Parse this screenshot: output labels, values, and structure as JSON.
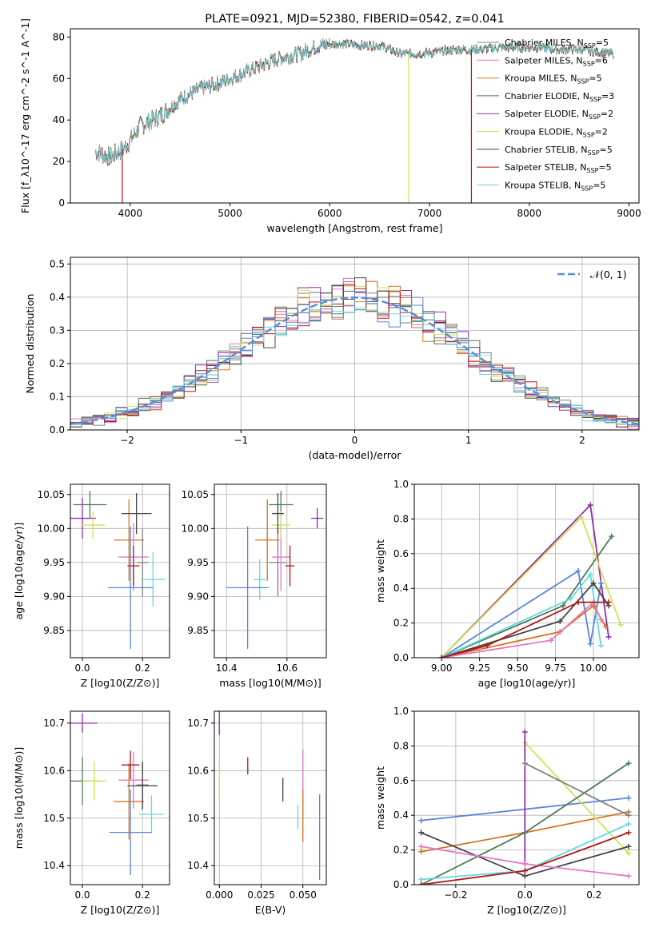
{
  "colors": {
    "Chabrier MILES": "#808080",
    "Salpeter MILES": "#e377c2",
    "Kroupa MILES": "#d9731f",
    "Chabrier ELODIE": "#4d7a5a",
    "Salpeter ELODIE": "#8e2fa8",
    "Kroupa ELODIE": "#d4e157",
    "Chabrier STELIB": "#444444",
    "Salpeter STELIB": "#b21818",
    "Kroupa STELIB": "#66d9dd",
    "blue": "#5b86d6",
    "normal": "#5b8fd6"
  },
  "chart_data": [
    {
      "id": "spectrum",
      "type": "line",
      "title": "PLATE=0921, MJD=52380, FIBERID=0542, z=0.041",
      "xlabel": "wavelength [Angstrom, rest frame]",
      "ylabel": "Flux [f_λ10^-17 erg cm^-2 s^-1 A^-1]",
      "xlim": [
        3400,
        9100
      ],
      "ylim": [
        0,
        84
      ],
      "xticks": [
        "4000",
        "5000",
        "6000",
        "7000",
        "8000",
        "9000"
      ],
      "yticks": [
        "0",
        "20",
        "40",
        "60",
        "80"
      ],
      "legend_position": "right",
      "legend": [
        {
          "label": "Chabrier MILES, N_SSP=5",
          "color": "Chabrier MILES"
        },
        {
          "label": "Salpeter MILES, N_SSP=6",
          "color": "Salpeter MILES"
        },
        {
          "label": "Kroupa MILES, N_SSP=5",
          "color": "Kroupa MILES"
        },
        {
          "label": "Chabrier ELODIE, N_SSP=3",
          "color": "Chabrier ELODIE"
        },
        {
          "label": "Salpeter ELODIE, N_SSP=2",
          "color": "Salpeter ELODIE"
        },
        {
          "label": "Kroupa ELODIE, N_SSP=2",
          "color": "Kroupa ELODIE"
        },
        {
          "label": "Chabrier STELIB, N_SSP=5",
          "color": "Chabrier STELIB"
        },
        {
          "label": "Salpeter STELIB, N_SSP=5",
          "color": "Salpeter STELIB"
        },
        {
          "label": "Kroupa STELIB, N_SSP=5",
          "color": "Kroupa STELIB"
        }
      ],
      "continuum": [
        [
          3650,
          25
        ],
        [
          3800,
          22
        ],
        [
          3950,
          27
        ],
        [
          4100,
          37
        ],
        [
          4300,
          42
        ],
        [
          4500,
          50
        ],
        [
          4700,
          55
        ],
        [
          4900,
          58
        ],
        [
          5100,
          62
        ],
        [
          5300,
          66
        ],
        [
          5500,
          70
        ],
        [
          5700,
          72
        ],
        [
          5900,
          76
        ],
        [
          6100,
          77
        ],
        [
          6300,
          76
        ],
        [
          6500,
          76
        ],
        [
          6700,
          72
        ],
        [
          6900,
          72
        ],
        [
          7100,
          73
        ],
        [
          7300,
          74
        ],
        [
          7500,
          74
        ],
        [
          7700,
          75
        ],
        [
          7900,
          75
        ],
        [
          8100,
          75
        ],
        [
          8300,
          74
        ],
        [
          8500,
          74
        ],
        [
          8800,
          72
        ]
      ],
      "drops": [
        [
          3920,
          "Salpeter STELIB"
        ],
        [
          6790,
          "Kroupa ELODIE"
        ],
        [
          7420,
          "Salpeter STELIB"
        ]
      ]
    },
    {
      "id": "residuals",
      "type": "histogram",
      "xlabel": "(data-model)/error",
      "ylabel": "Normed distribution",
      "xlim": [
        -2.5,
        2.5
      ],
      "ylim": [
        0,
        0.52
      ],
      "xticks": [
        "−2",
        "−1",
        "0",
        "1",
        "2"
      ],
      "yticks": [
        "0.0",
        "0.1",
        "0.2",
        "0.3",
        "0.4",
        "0.5"
      ],
      "curve_label": "𝒩(0, 1)",
      "bin_width": 0.1
    },
    {
      "id": "age_vs_Z",
      "type": "scatter",
      "xlabel": "Z [log10(Z/Z⊙)]",
      "ylabel": "age [log10(age/yr)]",
      "xlim": [
        -0.04,
        0.29
      ],
      "ylim": [
        9.81,
        10.065
      ],
      "xticks": [
        "0.0",
        "0.2"
      ],
      "yticks": [
        "9.85",
        "9.90",
        "9.95",
        "10.00",
        "10.05"
      ],
      "points": [
        {
          "s": "Chabrier MILES",
          "x": 0.2,
          "y": 9.95,
          "ex": 0.02,
          "ey": 0.05
        },
        {
          "s": "Salpeter MILES",
          "x": 0.17,
          "y": 9.958,
          "ex": 0.05,
          "ey": 0.05
        },
        {
          "s": "Kroupa MILES",
          "x": 0.155,
          "y": 9.983,
          "ex": 0.05,
          "ey": 0.06
        },
        {
          "s": "Chabrier ELODIE",
          "x": 0.025,
          "y": 10.035,
          "ex": 0.055,
          "ey": 0.02
        },
        {
          "s": "Salpeter ELODIE",
          "x": 0.0,
          "y": 10.015,
          "ex": 0.045,
          "ey": 0.03
        },
        {
          "s": "Kroupa ELODIE",
          "x": 0.035,
          "y": 10.005,
          "ex": 0.04,
          "ey": 0.02
        },
        {
          "s": "Chabrier STELIB",
          "x": 0.18,
          "y": 10.022,
          "ex": 0.05,
          "ey": 0.03
        },
        {
          "s": "Salpeter STELIB",
          "x": 0.17,
          "y": 9.945,
          "ex": 0.02,
          "ey": 0.03
        },
        {
          "s": "Kroupa STELIB",
          "x": 0.235,
          "y": 9.925,
          "ex": 0.04,
          "ey": 0.04
        },
        {
          "s": "blue",
          "x": 0.16,
          "y": 9.913,
          "ex": 0.075,
          "ey": 0.09
        }
      ]
    },
    {
      "id": "age_vs_mass",
      "type": "scatter",
      "xlabel": "mass [log10(M/M⊙)]",
      "ylabel": "",
      "xlim": [
        10.36,
        10.73
      ],
      "ylim": [
        9.81,
        10.065
      ],
      "xticks": [
        "10.4",
        "10.6"
      ],
      "yticks": [
        "9.85",
        "9.90",
        "9.95",
        "10.00",
        "10.05"
      ],
      "points": [
        {
          "s": "Chabrier MILES",
          "x": 10.57,
          "y": 9.95,
          "ex": 0.03,
          "ey": 0.05
        },
        {
          "s": "Salpeter MILES",
          "x": 10.58,
          "y": 9.958,
          "ex": 0.03,
          "ey": 0.05
        },
        {
          "s": "Kroupa MILES",
          "x": 10.535,
          "y": 9.983,
          "ex": 0.04,
          "ey": 0.06
        },
        {
          "s": "Chabrier ELODIE",
          "x": 10.58,
          "y": 10.035,
          "ex": 0.04,
          "ey": 0.02
        },
        {
          "s": "Salpeter ELODIE",
          "x": 10.7,
          "y": 10.015,
          "ex": 0.02,
          "ey": 0.015
        },
        {
          "s": "Kroupa ELODIE",
          "x": 10.58,
          "y": 10.005,
          "ex": 0.03,
          "ey": 0.02
        },
        {
          "s": "Chabrier STELIB",
          "x": 10.57,
          "y": 10.022,
          "ex": 0.02,
          "ey": 0.03
        },
        {
          "s": "Salpeter STELIB",
          "x": 10.61,
          "y": 9.945,
          "ex": 0.015,
          "ey": 0.03
        },
        {
          "s": "Kroupa STELIB",
          "x": 10.51,
          "y": 9.925,
          "ex": 0.02,
          "ey": 0.03
        },
        {
          "s": "blue",
          "x": 10.47,
          "y": 9.913,
          "ex": 0.07,
          "ey": 0.09
        }
      ]
    },
    {
      "id": "weight_vs_age",
      "type": "line",
      "xlabel": "age [log10(age/yr)]",
      "ylabel": "mass weight",
      "xlim": [
        8.82,
        10.3
      ],
      "ylim": [
        0,
        1
      ],
      "xticks": [
        "9.00",
        "9.25",
        "9.50",
        "9.75",
        "10.00"
      ],
      "yticks": [
        "0.0",
        "0.2",
        "0.4",
        "0.6",
        "0.8",
        "1.0"
      ],
      "series": [
        {
          "s": "Chabrier ELODIE",
          "pts": [
            [
              9.0,
              0.0
            ],
            [
              9.8,
              0.3
            ],
            [
              10.12,
              0.7
            ]
          ]
        },
        {
          "s": "Salpeter ELODIE",
          "pts": [
            [
              9.0,
              0.0
            ],
            [
              9.98,
              0.88
            ],
            [
              10.1,
              0.12
            ]
          ]
        },
        {
          "s": "Kroupa ELODIE",
          "pts": [
            [
              9.0,
              0.0
            ],
            [
              9.92,
              0.81
            ],
            [
              10.18,
              0.19
            ]
          ]
        },
        {
          "s": "blue",
          "pts": [
            [
              9.0,
              0.0
            ],
            [
              9.9,
              0.5
            ],
            [
              9.98,
              0.08
            ],
            [
              10.05,
              0.43
            ]
          ]
        },
        {
          "s": "Kroupa STELIB",
          "pts": [
            [
              9.0,
              0.0
            ],
            [
              9.85,
              0.34
            ],
            [
              9.98,
              0.48
            ],
            [
              10.05,
              0.07
            ]
          ]
        },
        {
          "s": "Kroupa MILES",
          "pts": [
            [
              9.0,
              0.0
            ],
            [
              9.78,
              0.15
            ],
            [
              10.0,
              0.3
            ],
            [
              10.08,
              0.18
            ]
          ]
        },
        {
          "s": "Salpeter MILES",
          "pts": [
            [
              9.0,
              0.0
            ],
            [
              9.72,
              0.1
            ],
            [
              10.0,
              0.32
            ],
            [
              10.05,
              0.22
            ]
          ]
        },
        {
          "s": "Chabrier STELIB",
          "pts": [
            [
              9.0,
              0.0
            ],
            [
              9.78,
              0.21
            ],
            [
              10.0,
              0.43
            ],
            [
              10.1,
              0.3
            ]
          ]
        },
        {
          "s": "Salpeter STELIB",
          "pts": [
            [
              9.0,
              0.0
            ],
            [
              9.3,
              0.07
            ],
            [
              9.9,
              0.32
            ],
            [
              10.1,
              0.32
            ]
          ]
        }
      ]
    },
    {
      "id": "mass_vs_Z",
      "type": "scatter",
      "xlabel": "Z [log10(Z/Z⊙)]",
      "ylabel": "mass [log10(M/M⊙)]",
      "xlim": [
        -0.04,
        0.29
      ],
      "ylim": [
        10.36,
        10.725
      ],
      "xticks": [
        "0.0",
        "0.2"
      ],
      "yticks": [
        "10.4",
        "10.5",
        "10.6",
        "10.7"
      ],
      "points": [
        {
          "s": "Chabrier MILES",
          "x": 0.2,
          "y": 10.57,
          "ex": 0.02,
          "ey": 0.05
        },
        {
          "s": "Salpeter MILES",
          "x": 0.17,
          "y": 10.58,
          "ex": 0.05,
          "ey": 0.06
        },
        {
          "s": "Kroupa MILES",
          "x": 0.155,
          "y": 10.535,
          "ex": 0.05,
          "ey": 0.08
        },
        {
          "s": "Chabrier ELODIE",
          "x": 0.0,
          "y": 10.578,
          "ex": 0.06,
          "ey": 0.05
        },
        {
          "s": "Salpeter ELODIE",
          "x": 0.0,
          "y": 10.7,
          "ex": 0.05,
          "ey": 0.02
        },
        {
          "s": "Kroupa ELODIE",
          "x": 0.04,
          "y": 10.578,
          "ex": 0.04,
          "ey": 0.04
        },
        {
          "s": "Chabrier STELIB",
          "x": 0.2,
          "y": 10.568,
          "ex": 0.05,
          "ey": 0.05
        },
        {
          "s": "Salpeter STELIB",
          "x": 0.16,
          "y": 10.612,
          "ex": 0.03,
          "ey": 0.03
        },
        {
          "s": "Kroupa STELIB",
          "x": 0.23,
          "y": 10.508,
          "ex": 0.04,
          "ey": 0.04
        },
        {
          "s": "blue",
          "x": 0.16,
          "y": 10.47,
          "ex": 0.07,
          "ey": 0.09
        }
      ]
    },
    {
      "id": "ebv",
      "type": "errorbar",
      "xlabel": "E(B-V)",
      "ylabel": "",
      "xlim": [
        -0.003,
        0.064
      ],
      "ylim": [
        10.36,
        10.725
      ],
      "xticks": [
        "0.000",
        "0.025",
        "0.050"
      ],
      "yticks": [
        "10.4",
        "10.5",
        "10.6",
        "10.7"
      ],
      "points": [
        {
          "s": "Salpeter ELODIE",
          "x": 0.0,
          "y": 10.7,
          "ey": 0.025
        },
        {
          "s": "Kroupa ELODIE",
          "x": 0.0,
          "y": 10.578,
          "ey": 0.04
        },
        {
          "s": "Salpeter STELIB",
          "x": 0.017,
          "y": 10.61,
          "ey": 0.018
        },
        {
          "s": "Chabrier STELIB",
          "x": 0.038,
          "y": 10.56,
          "ey": 0.025
        },
        {
          "s": "Kroupa STELIB",
          "x": 0.047,
          "y": 10.503,
          "ey": 0.025
        },
        {
          "s": "Salpeter MILES",
          "x": 0.05,
          "y": 10.575,
          "ey": 0.07
        },
        {
          "s": "Kroupa MILES",
          "x": 0.05,
          "y": 10.505,
          "ey": 0.055
        },
        {
          "s": "blue",
          "x": 0.06,
          "y": 10.46,
          "ey": 0.09
        }
      ]
    },
    {
      "id": "weight_vs_Z",
      "type": "line",
      "xlabel": "Z [log10(Z/Z⊙)]",
      "ylabel": "mass weight",
      "xlim": [
        -0.32,
        0.33
      ],
      "ylim": [
        0,
        1
      ],
      "xticks": [
        "−0.2",
        "0.0",
        "0.2"
      ],
      "yticks": [
        "0.0",
        "0.2",
        "0.4",
        "0.6",
        "0.8",
        "1.0"
      ],
      "series": [
        {
          "s": "blue",
          "pts": [
            [
              -0.3,
              0.37
            ],
            [
              0.3,
              0.5
            ]
          ]
        },
        {
          "s": "Kroupa MILES",
          "pts": [
            [
              -0.3,
              0.19
            ],
            [
              0.0,
              0.3
            ],
            [
              0.3,
              0.42
            ]
          ]
        },
        {
          "s": "Kroupa ELODIE",
          "pts": [
            [
              0.0,
              0.82
            ],
            [
              0.3,
              0.18
            ]
          ]
        },
        {
          "s": "Salpeter ELODIE",
          "pts": [
            [
              0.0,
              0.88
            ],
            [
              0.0,
              0.12
            ]
          ]
        },
        {
          "s": "Chabrier ELODIE",
          "pts": [
            [
              -0.3,
              0.0
            ],
            [
              0.0,
              0.3
            ],
            [
              0.3,
              0.7
            ]
          ]
        },
        {
          "s": "Chabrier STELIB",
          "pts": [
            [
              -0.3,
              0.3
            ],
            [
              0.0,
              0.05
            ],
            [
              0.3,
              0.22
            ]
          ]
        },
        {
          "s": "Salpeter MILES",
          "pts": [
            [
              -0.3,
              0.22
            ],
            [
              0.0,
              0.12
            ],
            [
              0.3,
              0.05
            ]
          ]
        },
        {
          "s": "Kroupa STELIB",
          "pts": [
            [
              -0.3,
              0.03
            ],
            [
              0.0,
              0.08
            ],
            [
              0.3,
              0.35
            ]
          ]
        },
        {
          "s": "Salpeter STELIB",
          "pts": [
            [
              -0.3,
              0.0
            ],
            [
              0.0,
              0.08
            ],
            [
              0.3,
              0.3
            ]
          ]
        },
        {
          "s": "Chabrier MILES",
          "pts": [
            [
              0.0,
              0.7
            ],
            [
              0.3,
              0.4
            ]
          ]
        }
      ]
    }
  ]
}
